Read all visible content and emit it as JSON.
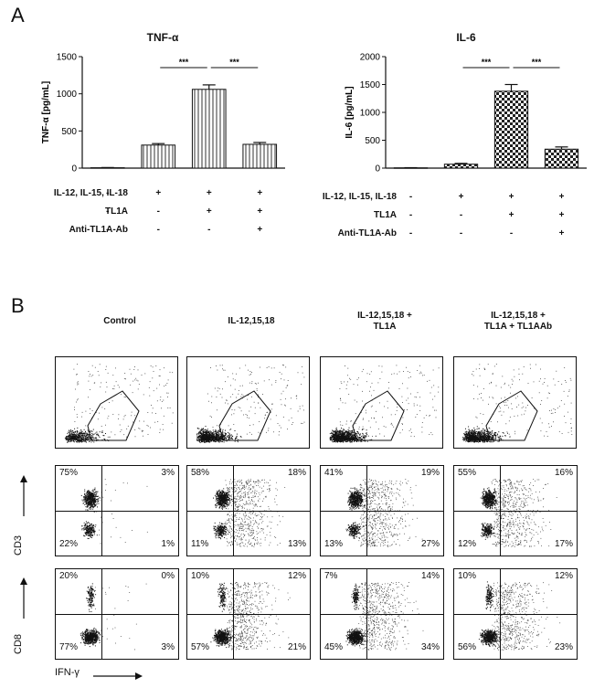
{
  "panel_a": {
    "letter": "A",
    "conditions": {
      "labels": [
        "IL-12, IL-15, IL-18",
        "TL1A",
        "Anti-TL1A-Ab"
      ],
      "matrix": [
        [
          "-",
          "+",
          "+",
          "+"
        ],
        [
          "-",
          "-",
          "+",
          "+"
        ],
        [
          "-",
          "-",
          "-",
          "+"
        ]
      ]
    },
    "significance": "***"
  },
  "panel_b": {
    "letter": "B",
    "columns": [
      "Control",
      "IL-12,15,18",
      "IL-12,15,18 +\nTL1A",
      "IL-12,15,18 +\nTL1A + TL1AAb"
    ],
    "row_labels": [
      "CD3",
      "CD8"
    ],
    "x_axis_label": "IFN-γ",
    "quadrants": {
      "cd3": [
        {
          "ul": "75%",
          "ur": "3%",
          "ll": "22%",
          "lr": "1%"
        },
        {
          "ul": "58%",
          "ur": "18%",
          "ll": "11%",
          "lr": "13%"
        },
        {
          "ul": "41%",
          "ur": "19%",
          "ll": "13%",
          "lr": "27%"
        },
        {
          "ul": "55%",
          "ur": "16%",
          "ll": "12%",
          "lr": "17%"
        }
      ],
      "cd8": [
        {
          "ul": "20%",
          "ur": "0%",
          "ll": "77%",
          "lr": "3%"
        },
        {
          "ul": "10%",
          "ur": "12%",
          "ll": "57%",
          "lr": "21%"
        },
        {
          "ul": "7%",
          "ur": "14%",
          "ll": "45%",
          "lr": "34%"
        },
        {
          "ul": "10%",
          "ur": "12%",
          "ll": "56%",
          "lr": "23%"
        }
      ]
    }
  },
  "chart_data": [
    {
      "type": "bar",
      "title": "TNF-α",
      "ylabel": "TNF-α [pg/mL]",
      "xlabel": "",
      "categories": [
        "-/-/-",
        "+/-/-",
        "+/+/-",
        "+/+/+"
      ],
      "values": [
        5,
        310,
        1060,
        320
      ],
      "errors": [
        3,
        20,
        60,
        25
      ],
      "ylim": [
        0,
        1500
      ],
      "yticks": [
        0,
        500,
        1000,
        1500
      ],
      "patterns": [
        "none",
        "vlines",
        "vlines",
        "vlines"
      ],
      "significance": [
        {
          "from": 1,
          "to": 2,
          "label": "***"
        },
        {
          "from": 2,
          "to": 3,
          "label": "***"
        }
      ]
    },
    {
      "type": "bar",
      "title": "IL-6",
      "ylabel": "IL-6 [pg/mL]",
      "xlabel": "",
      "categories": [
        "-/-/-",
        "+/-/-",
        "+/+/-",
        "+/+/+"
      ],
      "values": [
        5,
        70,
        1380,
        340
      ],
      "errors": [
        3,
        15,
        120,
        40
      ],
      "ylim": [
        0,
        2000
      ],
      "yticks": [
        0,
        500,
        1000,
        1500,
        2000
      ],
      "patterns": [
        "none",
        "checker",
        "checker",
        "checker"
      ],
      "significance": [
        {
          "from": 1,
          "to": 2,
          "label": "***"
        },
        {
          "from": 2,
          "to": 3,
          "label": "***"
        }
      ]
    }
  ]
}
